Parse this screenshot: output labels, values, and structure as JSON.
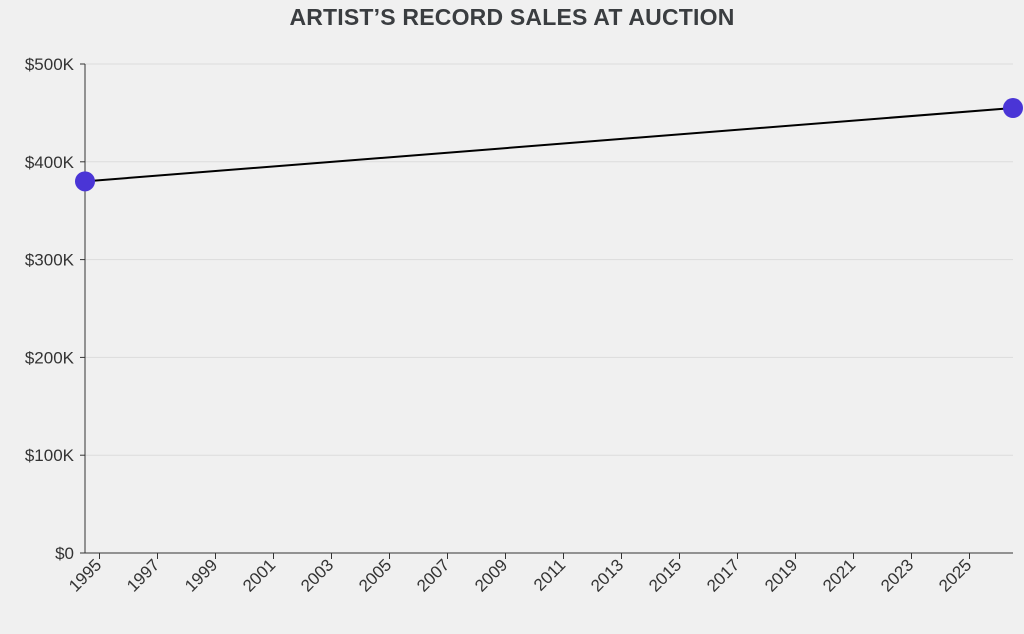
{
  "chart_data": {
    "type": "line",
    "title": "ARTIST’S RECORD SALES AT AUCTION",
    "xlabel": "",
    "ylabel": "",
    "x": [
      1994.5,
      2026.5
    ],
    "series": [
      {
        "values": [
          380000,
          455000
        ]
      }
    ],
    "xlim": [
      1994.5,
      2026.5
    ],
    "ylim": [
      0,
      500000
    ],
    "x_ticks": [
      1995,
      1997,
      1999,
      2001,
      2003,
      2005,
      2007,
      2009,
      2011,
      2013,
      2015,
      2017,
      2019,
      2021,
      2023,
      2025
    ],
    "x_tick_labels": [
      "1995",
      "1997",
      "1999",
      "2001",
      "2003",
      "2005",
      "2007",
      "2009",
      "2011",
      "2013",
      "2015",
      "2017",
      "2019",
      "2021",
      "2023",
      "2025"
    ],
    "y_ticks": [
      0,
      100000,
      200000,
      300000,
      400000,
      500000
    ],
    "y_tick_labels": [
      "$0",
      "$100K",
      "$200K",
      "$300K",
      "$400K",
      "$500K"
    ],
    "grid": "horizontal",
    "colors": {
      "line": "#000000",
      "marker": "#4a35d6",
      "grid": "#dcdcdc",
      "background": "#f0f0f0"
    }
  }
}
